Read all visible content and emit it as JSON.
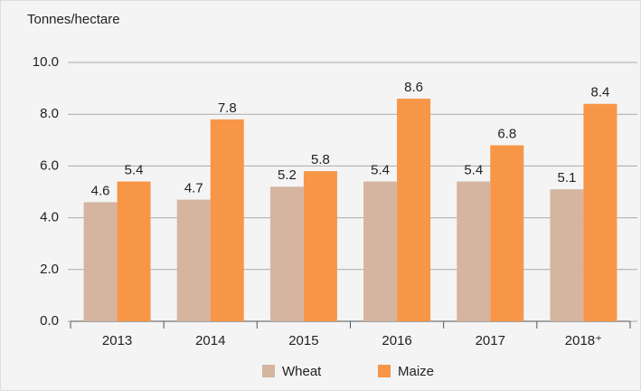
{
  "chart_data": {
    "type": "bar",
    "y_axis_label": "Tonnes/hectare",
    "categories": [
      "2013",
      "2014",
      "2015",
      "2016",
      "2017",
      "2018⁺"
    ],
    "series": [
      {
        "name": "Wheat",
        "color": "#d5b5a0",
        "values": [
          4.6,
          4.7,
          5.2,
          5.4,
          5.4,
          5.1
        ]
      },
      {
        "name": "Maize",
        "color": "#f79646",
        "values": [
          5.4,
          7.8,
          5.8,
          8.6,
          6.8,
          8.4
        ]
      }
    ],
    "ylim": [
      0,
      10
    ],
    "yticks": [
      {
        "value": 0,
        "label": "0.0"
      },
      {
        "value": 2,
        "label": "2.0"
      },
      {
        "value": 4,
        "label": "4.0"
      },
      {
        "value": 6,
        "label": "6.0"
      },
      {
        "value": 8,
        "label": "8.0"
      },
      {
        "value": 10,
        "label": "10.0"
      }
    ],
    "grid": true
  }
}
